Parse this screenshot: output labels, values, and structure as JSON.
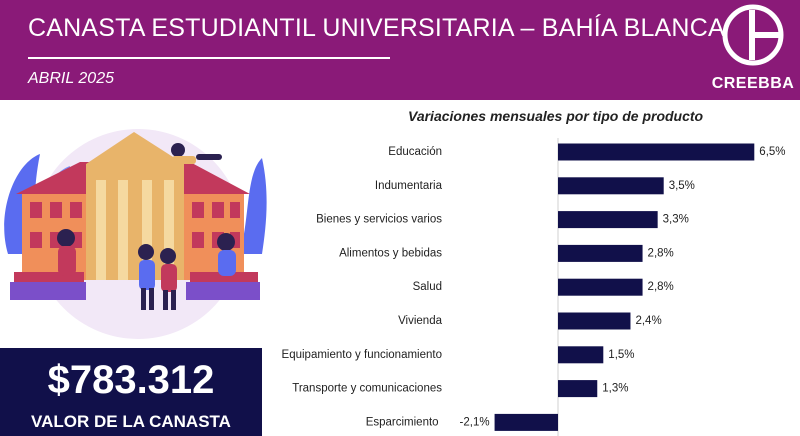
{
  "header": {
    "title": "CANASTA ESTUDIANTIL UNIVERSITARIA – BAHÍA BLANCA",
    "subtitle": "ABRIL 2025",
    "logo_text": "CREEBBA",
    "background_color": "#8a1a78"
  },
  "summary": {
    "value": "$783.312",
    "label": "VALOR DE LA CANASTA",
    "background_color": "#11104a"
  },
  "chart_data": {
    "type": "bar",
    "orientation": "horizontal",
    "title": "Variaciones mensuales por tipo de producto",
    "categories": [
      "Educación",
      "Indumentaria",
      "Bienes y servicios varios",
      "Alimentos y bebidas",
      "Salud",
      "Vivienda",
      "Equipamiento y funcionamiento",
      "Transporte y comunicaciones",
      "Esparcimiento"
    ],
    "values": [
      6.5,
      3.5,
      3.3,
      2.8,
      2.8,
      2.4,
      1.5,
      1.3,
      -2.1
    ],
    "value_labels": [
      "6,5%",
      "3,5%",
      "3,3%",
      "2,8%",
      "2,8%",
      "2,4%",
      "1,5%",
      "1,3%",
      "-2,1%"
    ],
    "xlim": [
      -2.5,
      7
    ],
    "grid": false,
    "bar_color": "#11104a"
  }
}
